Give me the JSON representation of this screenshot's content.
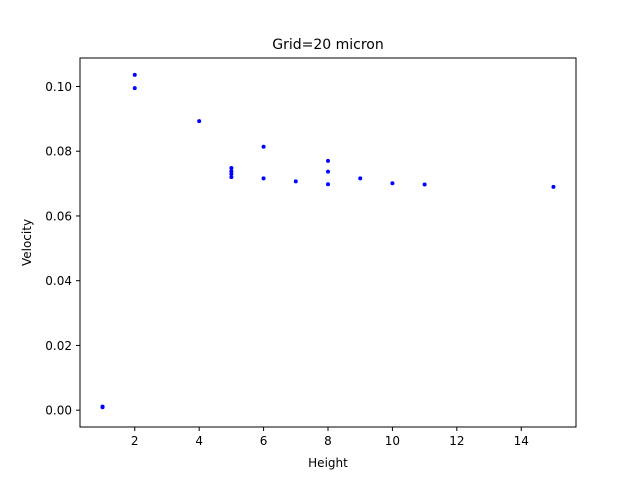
{
  "chart_data": {
    "type": "scatter",
    "title": "Grid=20 micron",
    "xlabel": "Height",
    "ylabel": "Velocity",
    "xlim": [
      0.3,
      15.7
    ],
    "ylim": [
      -0.0052,
      0.1088
    ],
    "xticks": [
      2,
      4,
      6,
      8,
      10,
      12,
      14
    ],
    "xtick_labels": [
      "2",
      "4",
      "6",
      "8",
      "10",
      "12",
      "14"
    ],
    "yticks": [
      0.0,
      0.02,
      0.04,
      0.06,
      0.08,
      0.1
    ],
    "ytick_labels": [
      "0.00",
      "0.02",
      "0.04",
      "0.06",
      "0.08",
      "0.10"
    ],
    "grid": false,
    "marker_color": "#0000ff",
    "series": [
      {
        "x": [
          1,
          1,
          1,
          2,
          2,
          4,
          5,
          5,
          5,
          5,
          6,
          6,
          7,
          8,
          8,
          8,
          9,
          10,
          11,
          15
        ],
        "y": [
          0.0009,
          0.001,
          0.0011,
          0.1036,
          0.0995,
          0.0893,
          0.0748,
          0.0738,
          0.073,
          0.072,
          0.0814,
          0.0716,
          0.0707,
          0.077,
          0.0737,
          0.0698,
          0.0716,
          0.0701,
          0.0697,
          0.069
        ]
      }
    ]
  }
}
